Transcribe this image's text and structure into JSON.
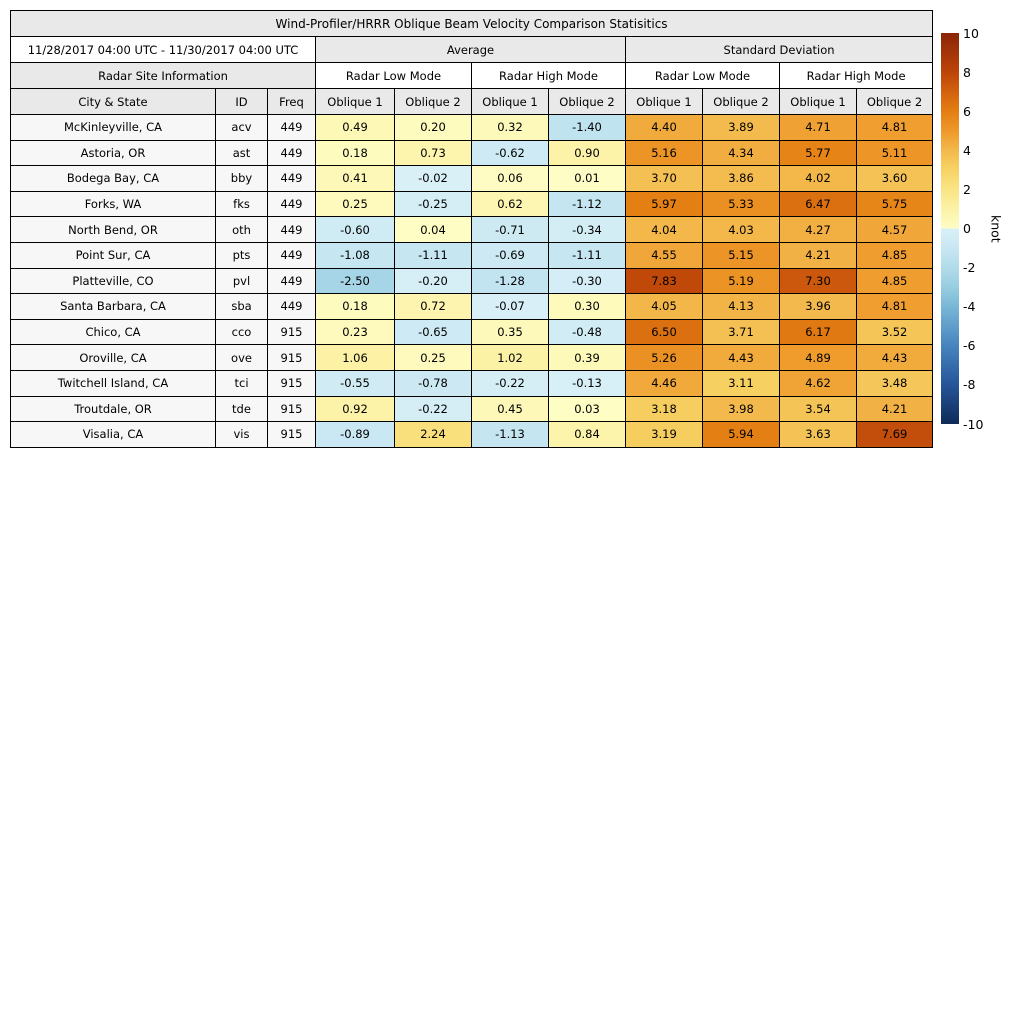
{
  "header": {
    "title": "Wind-Profiler/HRRR Oblique Beam Velocity Comparison Statisitics",
    "date_range": "11/28/2017 04:00 UTC - 11/30/2017 04:00 UTC",
    "group_average": "Average",
    "group_std": "Standard Deviation",
    "radar_site_info": "Radar Site Information",
    "low_mode": "Radar Low Mode",
    "high_mode": "Radar High Mode",
    "col_city": "City & State",
    "col_id": "ID",
    "col_freq": "Freq",
    "col_oblique1": "Oblique 1",
    "col_oblique2": "Oblique 2"
  },
  "colors": {
    "header_bg": "#E9E9E9",
    "label_bg": "#F7F7F7",
    "border": "#000000",
    "page_bg": "#FFFFFF"
  },
  "colorbar": {
    "label": "knot",
    "min": -10,
    "max": 10,
    "ticks": [
      10,
      8,
      6,
      4,
      2,
      0,
      -2,
      -4,
      -6,
      -8,
      -10
    ],
    "colormap": [
      {
        "v": 10,
        "c": "#8B2506"
      },
      {
        "v": 8,
        "c": "#BC4409"
      },
      {
        "v": 7,
        "c": "#D2610E"
      },
      {
        "v": 6,
        "c": "#E37E12"
      },
      {
        "v": 5,
        "c": "#EE9829"
      },
      {
        "v": 4,
        "c": "#F3B84B"
      },
      {
        "v": 3,
        "c": "#F7D365"
      },
      {
        "v": 2,
        "c": "#FAE484"
      },
      {
        "v": 1,
        "c": "#FCF2A6"
      },
      {
        "v": 0,
        "c": "#FEFDC5"
      },
      {
        "v": -0.001,
        "c": "#D9F0F7"
      },
      {
        "v": -1,
        "c": "#C8E7F2"
      },
      {
        "v": -2,
        "c": "#B2DCEA"
      },
      {
        "v": -3,
        "c": "#98CDE1"
      },
      {
        "v": -4,
        "c": "#79B7D7"
      },
      {
        "v": -6,
        "c": "#4684BE"
      },
      {
        "v": -8,
        "c": "#265599"
      },
      {
        "v": -10,
        "c": "#0E2B58"
      }
    ]
  },
  "chart_data": {
    "type": "heatmap",
    "title": "Wind-Profiler/HRRR Oblique Beam Velocity Comparison Statisitics",
    "date_range": "11/28/2017 04:00 UTC - 11/30/2017 04:00 UTC",
    "colorbar_label": "knot",
    "value_range": [
      -10,
      10
    ],
    "columns": [
      "City & State",
      "ID",
      "Freq",
      "Average Radar Low Mode Oblique 1",
      "Average Radar Low Mode Oblique 2",
      "Average Radar High Mode Oblique 1",
      "Average Radar High Mode Oblique 2",
      "Std Dev Radar Low Mode Oblique 1",
      "Std Dev Radar Low Mode Oblique 2",
      "Std Dev Radar High Mode Oblique 1",
      "Std Dev Radar High Mode Oblique 2"
    ],
    "rows": [
      {
        "city": "McKinleyville, CA",
        "id": "acv",
        "freq": "449",
        "values": [
          0.49,
          0.2,
          0.32,
          -1.4,
          4.4,
          3.89,
          4.71,
          4.81
        ]
      },
      {
        "city": "Astoria, OR",
        "id": "ast",
        "freq": "449",
        "values": [
          0.18,
          0.73,
          -0.62,
          0.9,
          5.16,
          4.34,
          5.77,
          5.11
        ]
      },
      {
        "city": "Bodega Bay, CA",
        "id": "bby",
        "freq": "449",
        "values": [
          0.41,
          -0.02,
          0.06,
          0.01,
          3.7,
          3.86,
          4.02,
          3.6
        ]
      },
      {
        "city": "Forks, WA",
        "id": "fks",
        "freq": "449",
        "values": [
          0.25,
          -0.25,
          0.62,
          -1.12,
          5.97,
          5.33,
          6.47,
          5.75
        ]
      },
      {
        "city": "North Bend, OR",
        "id": "oth",
        "freq": "449",
        "values": [
          -0.6,
          0.04,
          -0.71,
          -0.34,
          4.04,
          4.03,
          4.27,
          4.57
        ]
      },
      {
        "city": "Point Sur, CA",
        "id": "pts",
        "freq": "449",
        "values": [
          -1.08,
          -1.11,
          -0.69,
          -1.11,
          4.55,
          5.15,
          4.21,
          4.85
        ]
      },
      {
        "city": "Platteville, CO",
        "id": "pvl",
        "freq": "449",
        "values": [
          -2.5,
          -0.2,
          -1.28,
          -0.3,
          7.83,
          5.19,
          7.3,
          4.85
        ]
      },
      {
        "city": "Santa Barbara, CA",
        "id": "sba",
        "freq": "449",
        "values": [
          0.18,
          0.72,
          -0.07,
          0.3,
          4.05,
          4.13,
          3.96,
          4.81
        ]
      },
      {
        "city": "Chico, CA",
        "id": "cco",
        "freq": "915",
        "values": [
          0.23,
          -0.65,
          0.35,
          -0.48,
          6.5,
          3.71,
          6.17,
          3.52
        ]
      },
      {
        "city": "Oroville, CA",
        "id": "ove",
        "freq": "915",
        "values": [
          1.06,
          0.25,
          1.02,
          0.39,
          5.26,
          4.43,
          4.89,
          4.43
        ]
      },
      {
        "city": "Twitchell Island, CA",
        "id": "tci",
        "freq": "915",
        "values": [
          -0.55,
          -0.78,
          -0.22,
          -0.13,
          4.46,
          3.11,
          4.62,
          3.48
        ]
      },
      {
        "city": "Troutdale, OR",
        "id": "tde",
        "freq": "915",
        "values": [
          0.92,
          -0.22,
          0.45,
          0.03,
          3.18,
          3.98,
          3.54,
          4.21
        ]
      },
      {
        "city": "Visalia, CA",
        "id": "vis",
        "freq": "915",
        "values": [
          -0.89,
          2.24,
          -1.13,
          0.84,
          3.19,
          5.94,
          3.63,
          7.69
        ]
      }
    ]
  }
}
